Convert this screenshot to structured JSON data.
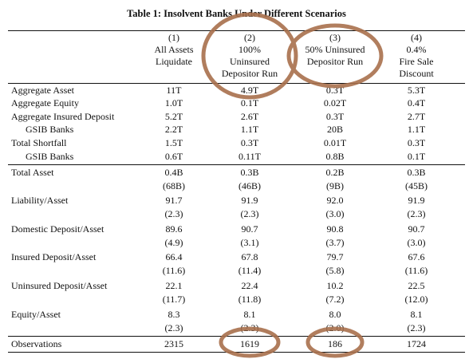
{
  "title": "Table 1: Insolvent Banks Under Different Scenarios",
  "table": {
    "columns": [
      [
        "(1)",
        "All Assets",
        "Liquidate"
      ],
      [
        "(2)",
        "100%",
        "Uninsured",
        "Depositor Run"
      ],
      [
        "(3)",
        "50% Uninsured",
        "Depositor Run"
      ],
      [
        "(4)",
        "0.4%",
        "Fire Sale",
        "Discount"
      ]
    ],
    "aggregate_rows": [
      {
        "label": "Aggregate Asset",
        "values": [
          "11T",
          "4.9T",
          "0.3T",
          "5.3T"
        ]
      },
      {
        "label": "Aggregate Equity",
        "values": [
          "1.0T",
          "0.1T",
          "0.02T",
          "0.4T"
        ]
      },
      {
        "label": "Aggregate Insured Deposit",
        "values": [
          "5.2T",
          "2.6T",
          "0.3T",
          "2.7T"
        ]
      },
      {
        "label": "GSIB Banks",
        "values": [
          "2.2T",
          "1.1T",
          "20B",
          "1.1T"
        ]
      },
      {
        "label": "Total Shortfall",
        "values": [
          "1.5T",
          "0.3T",
          "0.01T",
          "0.3T"
        ]
      },
      {
        "label": "GSIB Banks",
        "values": [
          "0.6T",
          "0.11T",
          "0.8B",
          "0.1T"
        ]
      }
    ],
    "bank_rows": [
      {
        "label": "Total Asset",
        "values": [
          "0.4B",
          "0.3B",
          "0.2B",
          "0.3B"
        ],
        "sub": [
          "(68B)",
          "(46B)",
          "(9B)",
          "(45B)"
        ]
      },
      {
        "label": "Liability/Asset",
        "values": [
          "91.7",
          "91.9",
          "92.0",
          "91.9"
        ],
        "sub": [
          "(2.3)",
          "(2.3)",
          "(3.0)",
          "(2.3)"
        ]
      },
      {
        "label": "Domestic Deposit/Asset",
        "values": [
          "89.6",
          "90.7",
          "90.8",
          "90.7"
        ],
        "sub": [
          "(4.9)",
          "(3.1)",
          "(3.7)",
          "(3.0)"
        ]
      },
      {
        "label": "Insured Deposit/Asset",
        "values": [
          "66.4",
          "67.8",
          "79.7",
          "67.6"
        ],
        "sub": [
          "(11.6)",
          "(11.4)",
          "(5.8)",
          "(11.6)"
        ]
      },
      {
        "label": "Uninsured Deposit/Asset",
        "values": [
          "22.1",
          "22.4",
          "10.2",
          "22.5"
        ],
        "sub": [
          "(11.7)",
          "(11.8)",
          "(7.2)",
          "(12.0)"
        ]
      },
      {
        "label": "Equity/Asset",
        "values": [
          "8.3",
          "8.1",
          "8.0",
          "8.1"
        ],
        "sub": [
          "(2.3)",
          "(2.3)",
          "(2.0)",
          "(2.3)"
        ]
      }
    ],
    "observations": {
      "label": "Observations",
      "values": [
        "2315",
        "1619",
        "186",
        "1724"
      ]
    }
  }
}
